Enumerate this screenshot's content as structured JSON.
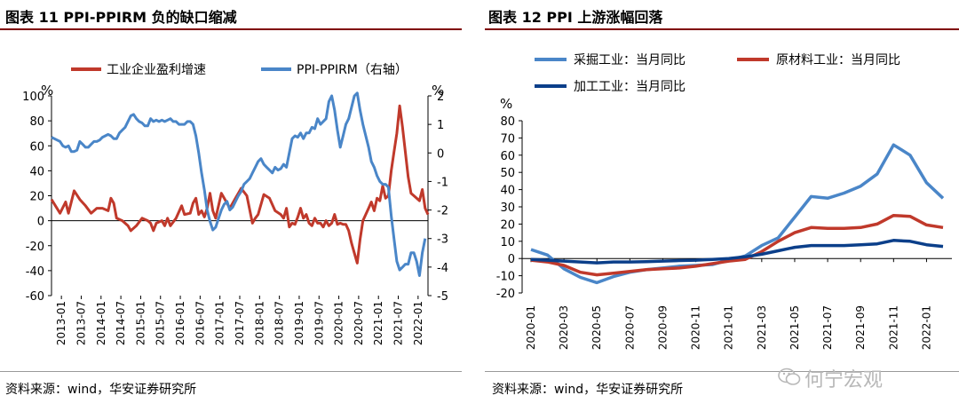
{
  "chart_data": [
    {
      "type": "line",
      "title": "图表 11 PPI-PPIRM 负的缺口缩减",
      "source": "资料来源：wind，华安证券研究所",
      "y_unit_left": "%",
      "y_unit_right": "%",
      "ylim_left": [
        -60,
        100
      ],
      "yticks_left": [
        -60,
        -40,
        -20,
        0,
        20,
        40,
        60,
        80,
        100
      ],
      "ylim_right": [
        -5,
        2
      ],
      "yticks_right": [
        -5,
        -4,
        -3,
        -2,
        -1,
        0,
        1,
        2
      ],
      "xticks": [
        "2013-01",
        "2013-07",
        "2014-01",
        "2014-07",
        "2015-01",
        "2015-07",
        "2016-01",
        "2016-07",
        "2017-01",
        "2017-07",
        "2018-01",
        "2018-07",
        "2019-01",
        "2019-07",
        "2020-01",
        "2020-07",
        "2021-01",
        "2021-07",
        "2022-01"
      ],
      "series": [
        {
          "name": "工业企业盈利增速",
          "axis": "left",
          "color": "#c0392b",
          "points": [
            [
              0,
              17
            ],
            [
              3,
              6
            ],
            [
              5,
              15
            ],
            [
              6,
              6
            ],
            [
              8,
              24
            ],
            [
              10,
              17
            ],
            [
              12,
              12
            ],
            [
              14,
              6
            ],
            [
              16,
              10
            ],
            [
              18,
              10
            ],
            [
              20,
              8
            ],
            [
              21,
              18
            ],
            [
              22,
              14
            ],
            [
              23,
              2
            ],
            [
              25,
              0
            ],
            [
              27,
              -4
            ],
            [
              28,
              -8
            ],
            [
              30,
              -4
            ],
            [
              32,
              2
            ],
            [
              34,
              0
            ],
            [
              35,
              -2
            ],
            [
              36,
              -8
            ],
            [
              37,
              -2
            ],
            [
              39,
              0
            ],
            [
              40,
              -4
            ],
            [
              41,
              2
            ],
            [
              42,
              -4
            ],
            [
              44,
              2
            ],
            [
              46,
              12
            ],
            [
              47,
              5
            ],
            [
              49,
              6
            ],
            [
              50,
              14
            ],
            [
              51,
              18
            ],
            [
              52,
              5
            ],
            [
              53,
              8
            ],
            [
              54,
              3
            ],
            [
              55,
              10
            ],
            [
              56,
              22
            ],
            [
              57,
              8
            ],
            [
              58,
              2
            ],
            [
              60,
              22
            ],
            [
              61,
              18
            ],
            [
              63,
              10
            ],
            [
              65,
              18
            ],
            [
              66,
              22
            ],
            [
              67,
              26
            ],
            [
              69,
              20
            ],
            [
              71,
              -2
            ],
            [
              72,
              2
            ],
            [
              73,
              5
            ],
            [
              75,
              21
            ],
            [
              77,
              18
            ],
            [
              79,
              8
            ],
            [
              81,
              5
            ],
            [
              82,
              2
            ],
            [
              83,
              10
            ],
            [
              84,
              -5
            ],
            [
              85,
              -2
            ],
            [
              86,
              -3
            ],
            [
              87,
              3
            ],
            [
              88,
              10
            ],
            [
              89,
              2
            ],
            [
              90,
              5
            ],
            [
              91,
              -2
            ],
            [
              92,
              -4
            ],
            [
              93,
              2
            ],
            [
              94,
              -2
            ],
            [
              95,
              -2
            ],
            [
              96,
              -5
            ],
            [
              97,
              0
            ],
            [
              98,
              -4
            ],
            [
              99,
              -2
            ],
            [
              100,
              5
            ],
            [
              101,
              -3
            ],
            [
              102,
              -2
            ],
            [
              103,
              -3
            ],
            [
              104,
              -3
            ],
            [
              105,
              -8
            ],
            [
              106,
              -18
            ],
            [
              107,
              -26
            ],
            [
              108,
              -34
            ],
            [
              109,
              -15
            ],
            [
              110,
              0
            ],
            [
              111,
              5
            ],
            [
              112,
              10
            ],
            [
              113,
              15
            ],
            [
              114,
              8
            ],
            [
              115,
              18
            ],
            [
              116,
              16
            ],
            [
              117,
              28
            ],
            [
              118,
              18
            ],
            [
              119,
              20
            ],
            [
              120,
              40
            ],
            [
              121,
              55
            ],
            [
              122,
              70
            ],
            [
              123,
              92
            ],
            [
              124,
              75
            ],
            [
              125,
              55
            ],
            [
              126,
              35
            ],
            [
              127,
              22
            ],
            [
              128,
              20
            ],
            [
              129,
              18
            ],
            [
              130,
              16
            ],
            [
              131,
              25
            ],
            [
              132,
              10
            ],
            [
              133,
              5
            ]
          ]
        },
        {
          "name": "PPI-PPIRM（右轴）",
          "axis": "right",
          "color": "#4a86c8",
          "points": [
            [
              0,
              0.55
            ],
            [
              2,
              0.45
            ],
            [
              3,
              0.4
            ],
            [
              4,
              0.25
            ],
            [
              5,
              0.2
            ],
            [
              6,
              0.25
            ],
            [
              7,
              0.05
            ],
            [
              8,
              0.05
            ],
            [
              9,
              0.1
            ],
            [
              10,
              0.4
            ],
            [
              11,
              0.3
            ],
            [
              12,
              0.2
            ],
            [
              13,
              0.2
            ],
            [
              14,
              0.3
            ],
            [
              15,
              0.4
            ],
            [
              16,
              0.4
            ],
            [
              17,
              0.45
            ],
            [
              18,
              0.55
            ],
            [
              19,
              0.6
            ],
            [
              20,
              0.65
            ],
            [
              21,
              0.6
            ],
            [
              22,
              0.5
            ],
            [
              23,
              0.5
            ],
            [
              24,
              0.7
            ],
            [
              25,
              0.8
            ],
            [
              26,
              0.9
            ],
            [
              27,
              1.1
            ],
            [
              28,
              1.3
            ],
            [
              29,
              1.35
            ],
            [
              30,
              1.2
            ],
            [
              31,
              1.1
            ],
            [
              32,
              1.05
            ],
            [
              33,
              0.95
            ],
            [
              34,
              0.95
            ],
            [
              35,
              1.2
            ],
            [
              36,
              1.1
            ],
            [
              37,
              1.15
            ],
            [
              38,
              1.1
            ],
            [
              39,
              1.15
            ],
            [
              40,
              1.1
            ],
            [
              41,
              1.15
            ],
            [
              42,
              1.2
            ],
            [
              43,
              1.1
            ],
            [
              44,
              1.1
            ],
            [
              45,
              1.0
            ],
            [
              46,
              1.0
            ],
            [
              47,
              1.0
            ],
            [
              48,
              1.1
            ],
            [
              49,
              1.1
            ],
            [
              50,
              1.0
            ],
            [
              51,
              0.6
            ],
            [
              52,
              0.0
            ],
            [
              53,
              -0.7
            ],
            [
              54,
              -1.3
            ],
            [
              55,
              -2.0
            ],
            [
              56,
              -2.4
            ],
            [
              57,
              -2.7
            ],
            [
              58,
              -2.6
            ],
            [
              59,
              -2.3
            ],
            [
              60,
              -2.0
            ],
            [
              61,
              -1.8
            ],
            [
              62,
              -1.7
            ],
            [
              63,
              -2.0
            ],
            [
              64,
              -1.9
            ],
            [
              65,
              -1.7
            ],
            [
              66,
              -1.5
            ],
            [
              67,
              -1.35
            ],
            [
              68,
              -1.1
            ],
            [
              69,
              -1.0
            ],
            [
              70,
              -0.9
            ],
            [
              71,
              -0.7
            ],
            [
              72,
              -0.5
            ],
            [
              73,
              -0.3
            ],
            [
              74,
              -0.2
            ],
            [
              75,
              -0.4
            ],
            [
              76,
              -0.5
            ],
            [
              77,
              -0.6
            ],
            [
              78,
              -0.7
            ],
            [
              79,
              -0.5
            ],
            [
              80,
              -0.6
            ],
            [
              81,
              -0.55
            ],
            [
              82,
              -0.4
            ],
            [
              83,
              -0.5
            ],
            [
              84,
              0.0
            ],
            [
              85,
              0.5
            ],
            [
              86,
              0.6
            ],
            [
              87,
              0.55
            ],
            [
              88,
              0.7
            ],
            [
              89,
              0.5
            ],
            [
              90,
              0.7
            ],
            [
              91,
              0.7
            ],
            [
              92,
              0.9
            ],
            [
              93,
              0.85
            ],
            [
              94,
              1.2
            ],
            [
              95,
              1.0
            ],
            [
              96,
              1.1
            ],
            [
              97,
              1.2
            ],
            [
              98,
              1.8
            ],
            [
              99,
              2.0
            ],
            [
              100,
              1.5
            ],
            [
              101,
              0.8
            ],
            [
              102,
              0.2
            ],
            [
              103,
              0.6
            ],
            [
              104,
              1.0
            ],
            [
              105,
              1.2
            ],
            [
              106,
              1.6
            ],
            [
              107,
              2.0
            ],
            [
              108,
              2.1
            ],
            [
              109,
              1.5
            ],
            [
              110,
              1.0
            ],
            [
              111,
              0.6
            ],
            [
              112,
              0.2
            ],
            [
              113,
              -0.3
            ],
            [
              114,
              -0.5
            ],
            [
              115,
              -0.8
            ],
            [
              116,
              -1.0
            ],
            [
              117,
              -1.1
            ],
            [
              118,
              -1.1
            ],
            [
              119,
              -1.2
            ],
            [
              120,
              -2.2
            ],
            [
              121,
              -3.0
            ],
            [
              122,
              -3.8
            ],
            [
              123,
              -4.1
            ],
            [
              124,
              -4.0
            ],
            [
              125,
              -3.9
            ],
            [
              126,
              -3.9
            ],
            [
              127,
              -3.5
            ],
            [
              128,
              -3.5
            ],
            [
              129,
              -3.8
            ],
            [
              130,
              -4.3
            ],
            [
              131,
              -3.5
            ],
            [
              132,
              -3.0
            ]
          ]
        }
      ]
    },
    {
      "type": "line",
      "title": "图表 12 PPI 上游涨幅回落",
      "source": "资料来源：wind，华安证券研究所",
      "y_unit": "%",
      "ylim": [
        -20,
        80
      ],
      "yticks": [
        -20,
        -10,
        0,
        10,
        20,
        30,
        40,
        50,
        60,
        70,
        80
      ],
      "xticks": [
        "2020-01",
        "2020-03",
        "2020-05",
        "2020-07",
        "2020-09",
        "2020-11",
        "2021-01",
        "2021-03",
        "2021-05",
        "2021-07",
        "2021-09",
        "2021-11",
        "2022-01"
      ],
      "series": [
        {
          "name": "采掘工业：当月同比",
          "color": "#4a86c8",
          "values": [
            5.2,
            2.0,
            -6.0,
            -11.0,
            -14.0,
            -10.5,
            -8.0,
            -6.5,
            -5.5,
            -4.5,
            -4.0,
            -3.5,
            -1.0,
            1.5,
            7.5,
            12.0,
            24.0,
            36.0,
            35.0,
            38.0,
            42.0,
            49.0,
            66.0,
            60.0,
            44.0,
            35.0
          ]
        },
        {
          "name": "原材料工业：当月同比",
          "color": "#c0392b",
          "values": [
            -1.0,
            -2.0,
            -4.0,
            -8.0,
            -9.5,
            -8.5,
            -7.5,
            -6.5,
            -6.0,
            -5.5,
            -4.5,
            -3.0,
            -1.5,
            -0.5,
            4.0,
            10.0,
            15.0,
            18.0,
            17.5,
            17.5,
            18.0,
            20.0,
            25.0,
            24.5,
            19.5,
            18.0
          ]
        },
        {
          "name": "加工工业：当月同比",
          "color": "#0b3f8a",
          "values": [
            -0.5,
            -1.0,
            -1.5,
            -2.0,
            -2.5,
            -2.0,
            -2.0,
            -1.8,
            -1.5,
            -1.2,
            -1.0,
            -0.5,
            0.0,
            1.0,
            2.5,
            4.5,
            6.5,
            7.5,
            7.5,
            7.5,
            8.0,
            8.5,
            10.5,
            10.0,
            8.0,
            7.0
          ]
        }
      ]
    }
  ],
  "watermark": "何宁宏观"
}
